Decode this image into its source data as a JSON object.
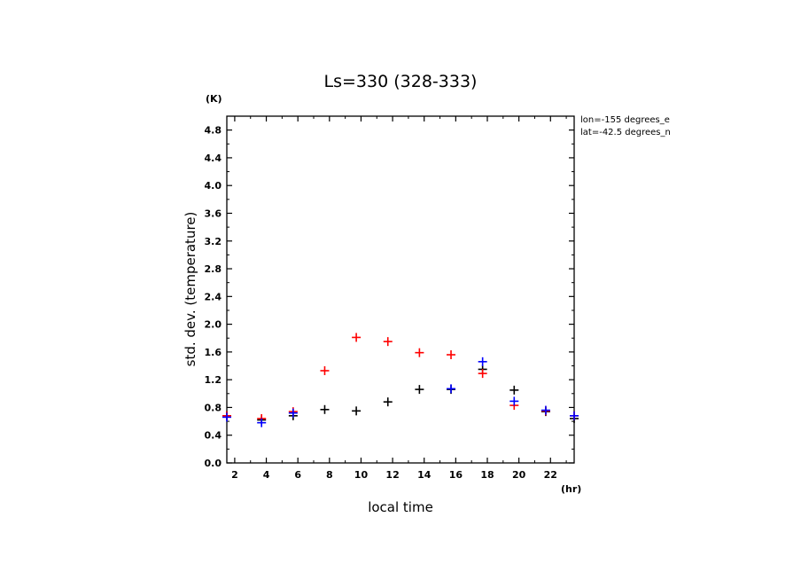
{
  "chart_data": {
    "type": "scatter",
    "title": "Ls=330 (328-333)",
    "xlabel": "local time",
    "ylabel": "std. dev. (temperature)",
    "x_unit": "(hr)",
    "y_unit": "(K)",
    "xlim": [
      1.5,
      23.5
    ],
    "ylim": [
      0.0,
      5.0
    ],
    "x_ticks": [
      "2",
      "4",
      "6",
      "8",
      "10",
      "12",
      "14",
      "16",
      "18",
      "20",
      "22"
    ],
    "y_ticks": [
      "0.0",
      "0.4",
      "0.8",
      "1.2",
      "1.6",
      "2.0",
      "2.4",
      "2.8",
      "3.2",
      "3.6",
      "4.0",
      "4.4",
      "4.8"
    ],
    "annotations": [
      "lon=-155 degrees_e",
      "lat=-42.5 degrees_n"
    ],
    "grid": false,
    "series": [
      {
        "color": "#000000",
        "x": [
          1.5,
          3.7,
          5.7,
          7.7,
          9.7,
          11.7,
          13.7,
          15.7,
          17.7,
          19.7,
          21.7,
          23.5
        ],
        "y": [
          0.68,
          0.62,
          0.68,
          0.77,
          0.75,
          0.88,
          1.06,
          1.06,
          1.35,
          1.05,
          0.74,
          0.64
        ]
      },
      {
        "color": "#ff0000",
        "x": [
          1.5,
          3.7,
          5.7,
          7.7,
          9.7,
          11.7,
          13.7,
          15.7,
          17.7,
          19.7,
          21.7,
          23.5
        ],
        "y": [
          0.68,
          0.64,
          0.74,
          1.33,
          1.81,
          1.75,
          1.59,
          1.56,
          1.29,
          0.83,
          0.75,
          0.68
        ]
      },
      {
        "color": "#0000ff",
        "x": [
          1.5,
          3.7,
          5.7,
          7.7,
          9.7,
          11.7,
          13.7,
          15.7,
          17.7,
          19.7,
          21.7,
          23.5
        ],
        "y": [
          0.66,
          0.58,
          0.72,
          null,
          null,
          null,
          null,
          1.07,
          1.46,
          0.89,
          0.76,
          0.68
        ]
      }
    ]
  }
}
